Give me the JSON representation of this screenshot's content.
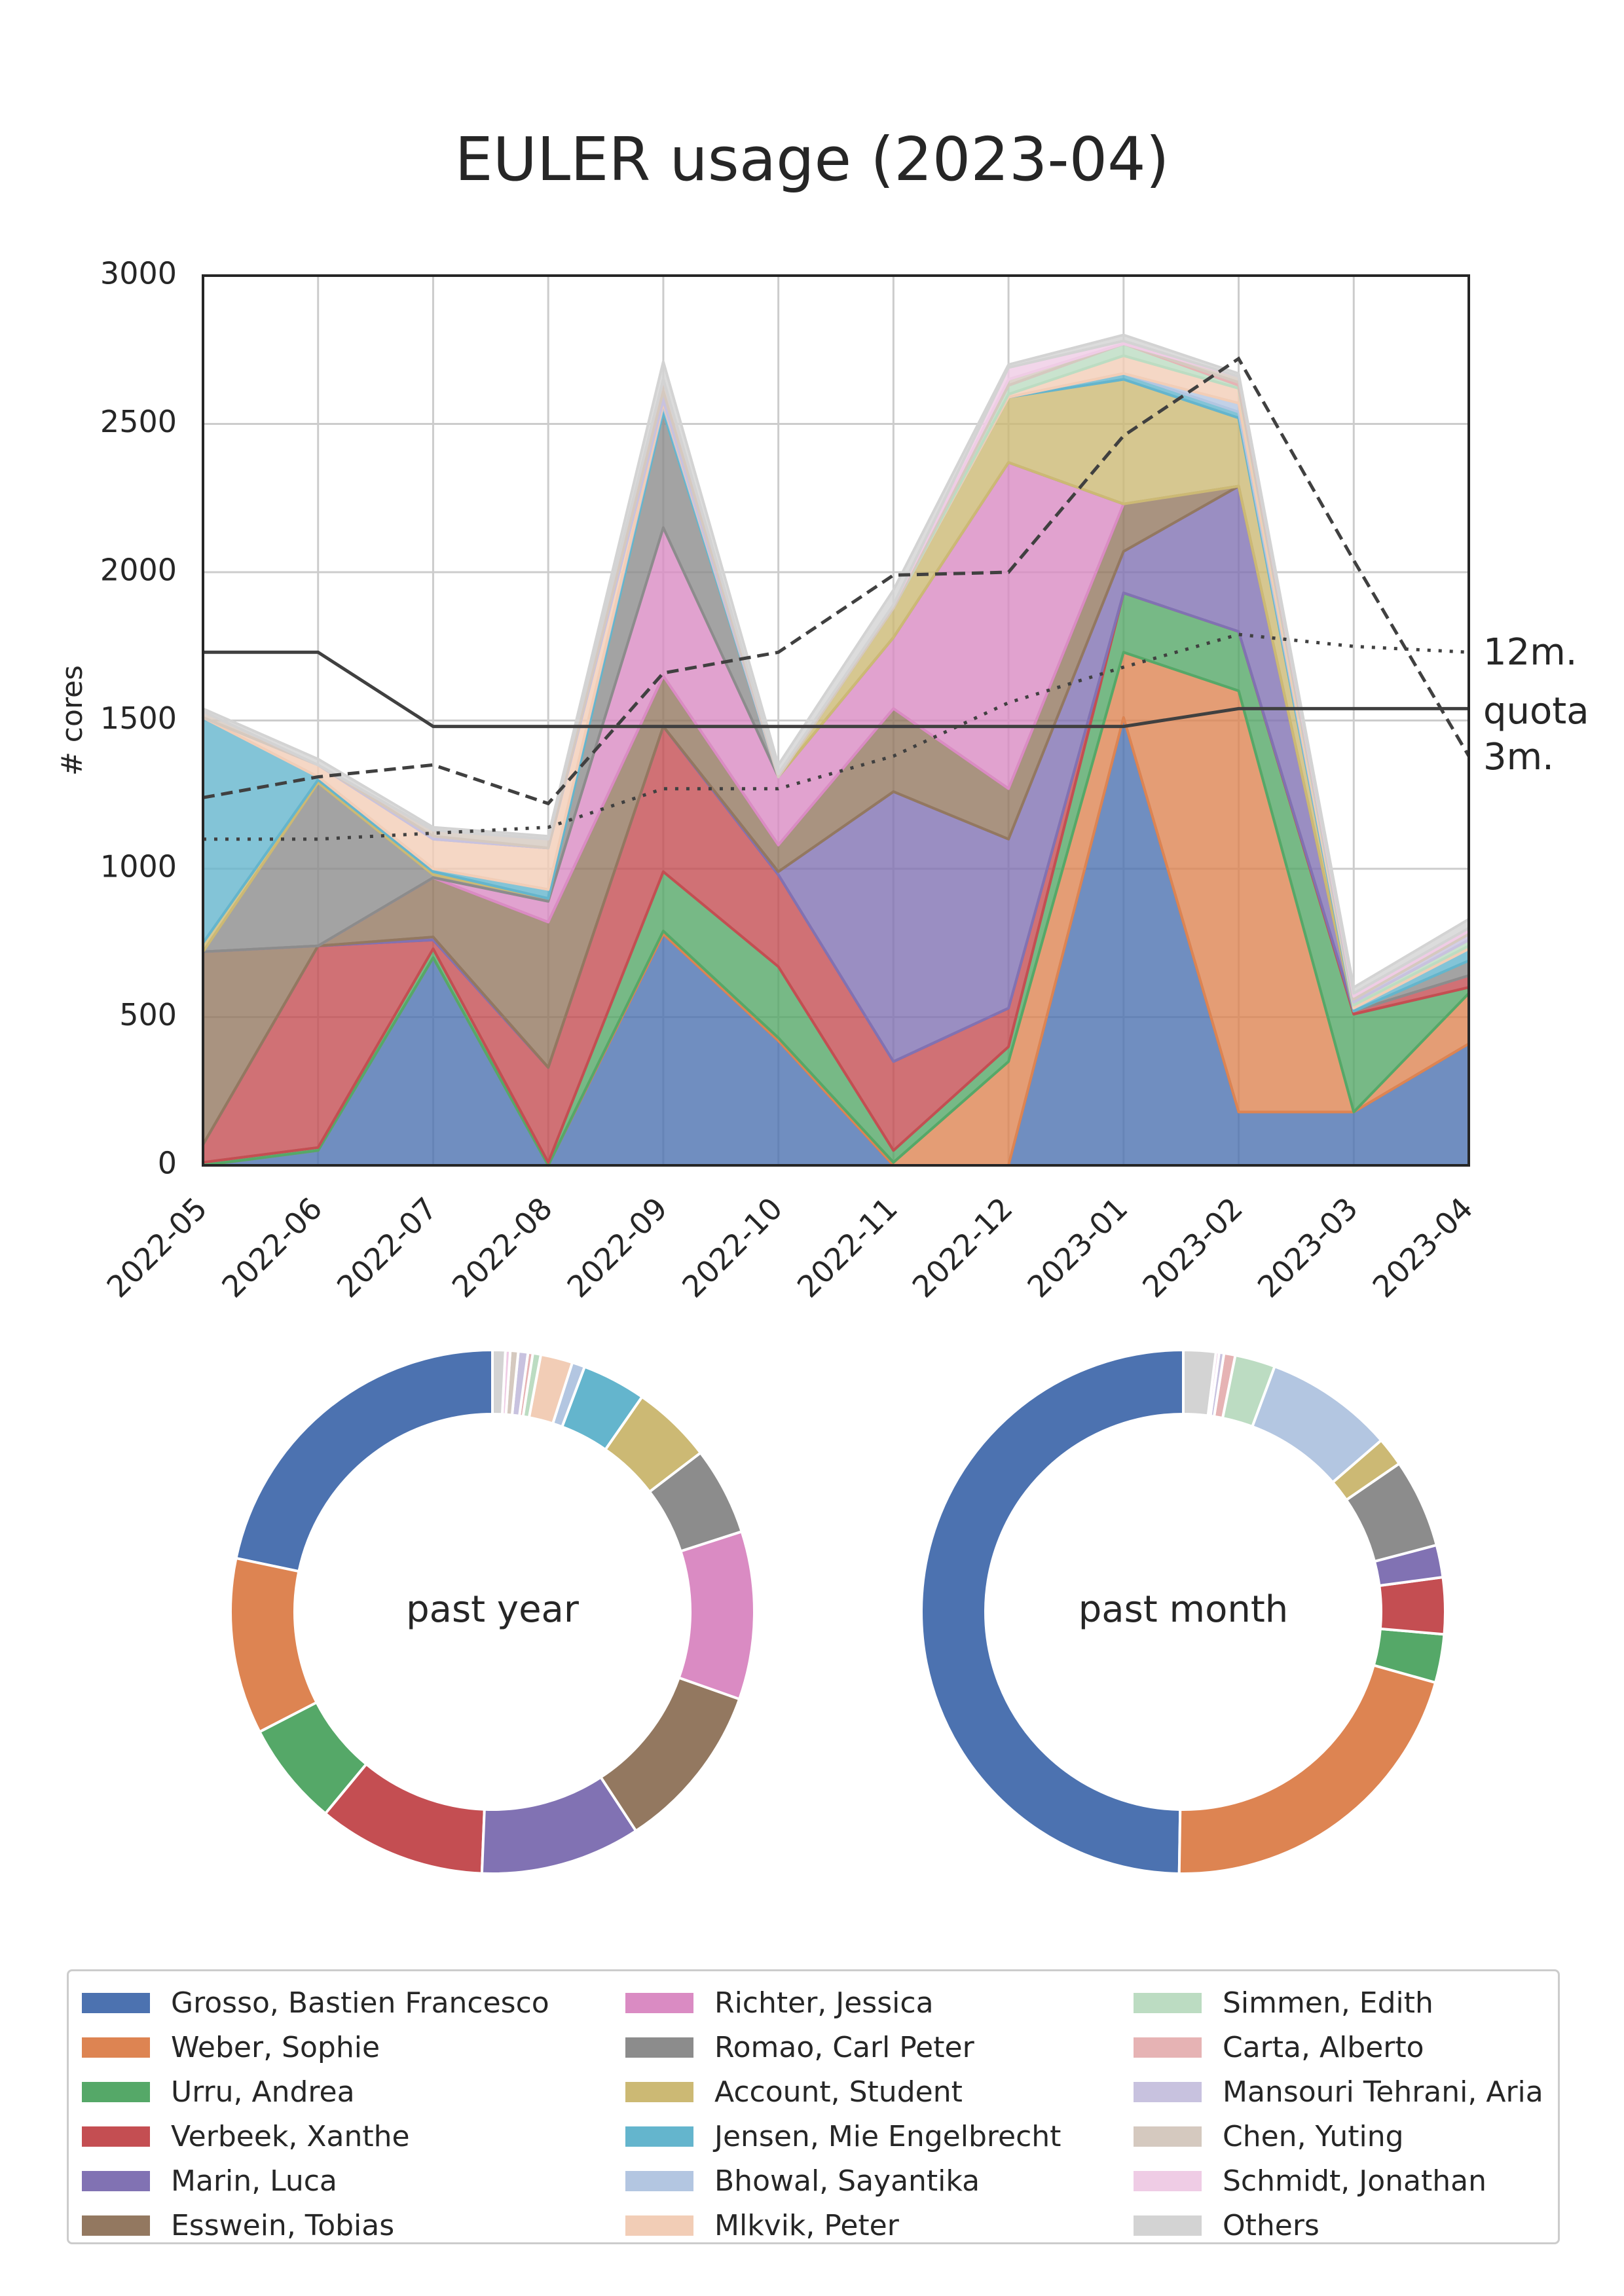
{
  "title": "EULER usage (2023-04)",
  "chart_data": [
    {
      "type": "area",
      "subtype": "stacked",
      "title": "EULER usage (2023-04)",
      "xlabel": "",
      "ylabel": "# cores",
      "ylim": [
        0,
        3000
      ],
      "yticks": [
        0,
        500,
        1000,
        1500,
        2000,
        2500,
        3000
      ],
      "categories": [
        "2022-05",
        "2022-06",
        "2022-07",
        "2022-08",
        "2022-09",
        "2022-10",
        "2022-11",
        "2022-12",
        "2023-01",
        "2023-02",
        "2023-03",
        "2023-04"
      ],
      "grid": true,
      "series": [
        {
          "name": "Grosso, Bastien Francesco",
          "color": "#4c72b0",
          "values": [
            0,
            50,
            700,
            0,
            780,
            420,
            0,
            0,
            1510,
            180,
            180,
            410
          ]
        },
        {
          "name": "Weber, Sophie",
          "color": "#dd8452",
          "values": [
            0,
            0,
            0,
            0,
            10,
            10,
            10,
            350,
            220,
            1420,
            0,
            170
          ]
        },
        {
          "name": "Urru, Andrea",
          "color": "#55a868",
          "values": [
            10,
            10,
            30,
            10,
            200,
            240,
            40,
            50,
            200,
            200,
            330,
            20
          ]
        },
        {
          "name": "Verbeek, Xanthe",
          "color": "#c44e52",
          "values": [
            60,
            680,
            30,
            320,
            490,
            310,
            300,
            130,
            0,
            0,
            10,
            40
          ]
        },
        {
          "name": "Marin, Luca",
          "color": "#8172b3",
          "values": [
            0,
            0,
            10,
            0,
            0,
            10,
            910,
            570,
            140,
            490,
            0,
            0
          ]
        },
        {
          "name": "Esswein, Tobias",
          "color": "#937860",
          "values": [
            650,
            0,
            200,
            490,
            170,
            90,
            280,
            170,
            160,
            0,
            0,
            0
          ]
        },
        {
          "name": "Richter, Jessica",
          "color": "#da8bc3",
          "values": [
            0,
            0,
            0,
            70,
            500,
            230,
            240,
            1100,
            0,
            0,
            0,
            0
          ]
        },
        {
          "name": "Romao, Carl Peter",
          "color": "#8c8c8c",
          "values": [
            0,
            550,
            10,
            10,
            390,
            0,
            0,
            0,
            0,
            0,
            0,
            50
          ]
        },
        {
          "name": "Account, Student",
          "color": "#ccb974",
          "values": [
            30,
            10,
            10,
            0,
            0,
            0,
            100,
            220,
            420,
            230,
            0,
            0
          ]
        },
        {
          "name": "Jensen, Mie Engelbrecht",
          "color": "#64b5cd",
          "values": [
            760,
            10,
            10,
            30,
            20,
            0,
            0,
            0,
            20,
            20,
            10,
            40
          ]
        },
        {
          "name": "Bhowal, Sayantika",
          "color": "#b3c6e1",
          "values": [
            0,
            0,
            0,
            0,
            10,
            0,
            0,
            0,
            0,
            30,
            0,
            0
          ]
        },
        {
          "name": "Mlkvik, Peter",
          "color": "#f2cdb6",
          "values": [
            0,
            40,
            100,
            140,
            10,
            0,
            0,
            10,
            60,
            50,
            10,
            10
          ]
        },
        {
          "name": "Simmen, Edith",
          "color": "#bcdcc2",
          "values": [
            0,
            0,
            0,
            0,
            0,
            0,
            0,
            30,
            40,
            10,
            10,
            20
          ]
        },
        {
          "name": "Carta, Alberto",
          "color": "#e6b3b4",
          "values": [
            0,
            0,
            0,
            0,
            0,
            0,
            0,
            0,
            0,
            10,
            0,
            0
          ]
        },
        {
          "name": "Mansouri Tehrani, Aria",
          "color": "#c8c2df",
          "values": [
            0,
            0,
            10,
            0,
            30,
            0,
            0,
            0,
            0,
            0,
            10,
            20
          ]
        },
        {
          "name": "Chen, Yuting",
          "color": "#d5c9bf",
          "values": [
            20,
            0,
            20,
            30,
            40,
            10,
            10,
            20,
            0,
            20,
            10,
            10
          ]
        },
        {
          "name": "Schmidt, Jonathan",
          "color": "#efcce5",
          "values": [
            0,
            0,
            0,
            0,
            0,
            0,
            0,
            40,
            10,
            0,
            10,
            10
          ]
        },
        {
          "name": "Others",
          "color": "#d3d3d3",
          "values": [
            10,
            20,
            10,
            10,
            60,
            30,
            50,
            10,
            20,
            10,
            20,
            30
          ]
        }
      ],
      "lines": [
        {
          "name": "12m.",
          "style": "dotted",
          "color": "#404040",
          "values": [
            1100,
            1100,
            1120,
            1140,
            1270,
            1270,
            1380,
            1560,
            1680,
            1790,
            1750,
            1730
          ]
        },
        {
          "name": "quota",
          "style": "solid",
          "color": "#404040",
          "values": [
            1730,
            1730,
            1480,
            1480,
            1480,
            1480,
            1480,
            1480,
            1480,
            1540,
            1540,
            1540
          ]
        },
        {
          "name": "3m.",
          "style": "dashed",
          "color": "#404040",
          "values": [
            1240,
            1310,
            1350,
            1220,
            1660,
            1730,
            1990,
            2000,
            2460,
            2720,
            2040,
            1380
          ]
        }
      ]
    },
    {
      "type": "pie",
      "subtype": "donut",
      "title": "past year",
      "slices": [
        {
          "name": "Grosso, Bastien Francesco",
          "value": 22.0,
          "color": "#4c72b0"
        },
        {
          "name": "Weber, Sophie",
          "value": 11.0,
          "color": "#dd8452"
        },
        {
          "name": "Urru, Andrea",
          "value": 6.5,
          "color": "#55a868"
        },
        {
          "name": "Verbeek, Xanthe",
          "value": 10.5,
          "color": "#c44e52"
        },
        {
          "name": "Marin, Luca",
          "value": 10.0,
          "color": "#8172b3"
        },
        {
          "name": "Esswein, Tobias",
          "value": 10.5,
          "color": "#937860"
        },
        {
          "name": "Richter, Jessica",
          "value": 10.5,
          "color": "#da8bc3"
        },
        {
          "name": "Romao, Carl Peter",
          "value": 5.5,
          "color": "#8c8c8c"
        },
        {
          "name": "Account, Student",
          "value": 5.0,
          "color": "#ccb974"
        },
        {
          "name": "Jensen, Mie Engelbrecht",
          "value": 4.0,
          "color": "#64b5cd"
        },
        {
          "name": "Bhowal, Sayantika",
          "value": 0.8,
          "color": "#b3c6e1"
        },
        {
          "name": "Mlkvik, Peter",
          "value": 2.0,
          "color": "#f2cdb6"
        },
        {
          "name": "Simmen, Edith",
          "value": 0.5,
          "color": "#bcdcc2"
        },
        {
          "name": "Carta, Alberto",
          "value": 0.3,
          "color": "#e6b3b4"
        },
        {
          "name": "Mansouri Tehrani, Aria",
          "value": 0.6,
          "color": "#c8c2df"
        },
        {
          "name": "Chen, Yuting",
          "value": 0.5,
          "color": "#d5c9bf"
        },
        {
          "name": "Schmidt, Jonathan",
          "value": 0.3,
          "color": "#efcce5"
        },
        {
          "name": "Others",
          "value": 0.8,
          "color": "#d3d3d3"
        }
      ]
    },
    {
      "type": "pie",
      "subtype": "donut",
      "title": "past month",
      "slices": [
        {
          "name": "Grosso, Bastien Francesco",
          "value": 50.0,
          "color": "#4c72b0"
        },
        {
          "name": "Weber, Sophie",
          "value": 21.0,
          "color": "#dd8452"
        },
        {
          "name": "Urru, Andrea",
          "value": 3.0,
          "color": "#55a868"
        },
        {
          "name": "Verbeek, Xanthe",
          "value": 3.5,
          "color": "#c44e52"
        },
        {
          "name": "Marin, Luca",
          "value": 2.0,
          "color": "#8172b3"
        },
        {
          "name": "Esswein, Tobias",
          "value": 0,
          "color": "#937860"
        },
        {
          "name": "Richter, Jessica",
          "value": 0,
          "color": "#da8bc3"
        },
        {
          "name": "Romao, Carl Peter",
          "value": 5.5,
          "color": "#8c8c8c"
        },
        {
          "name": "Account, Student",
          "value": 1.8,
          "color": "#ccb974"
        },
        {
          "name": "Jensen, Mie Engelbrecht",
          "value": 0,
          "color": "#64b5cd"
        },
        {
          "name": "Bhowal, Sayantika",
          "value": 8.0,
          "color": "#b3c6e1"
        },
        {
          "name": "Mlkvik, Peter",
          "value": 0,
          "color": "#f2cdb6"
        },
        {
          "name": "Simmen, Edith",
          "value": 2.5,
          "color": "#bcdcc2"
        },
        {
          "name": "Carta, Alberto",
          "value": 0.7,
          "color": "#e6b3b4"
        },
        {
          "name": "Mansouri Tehrani, Aria",
          "value": 0.3,
          "color": "#c8c2df"
        },
        {
          "name": "Chen, Yuting",
          "value": 0,
          "color": "#d5c9bf"
        },
        {
          "name": "Schmidt, Jonathan",
          "value": 0.2,
          "color": "#efcce5"
        },
        {
          "name": "Others",
          "value": 2.0,
          "color": "#d3d3d3"
        }
      ]
    }
  ]
}
